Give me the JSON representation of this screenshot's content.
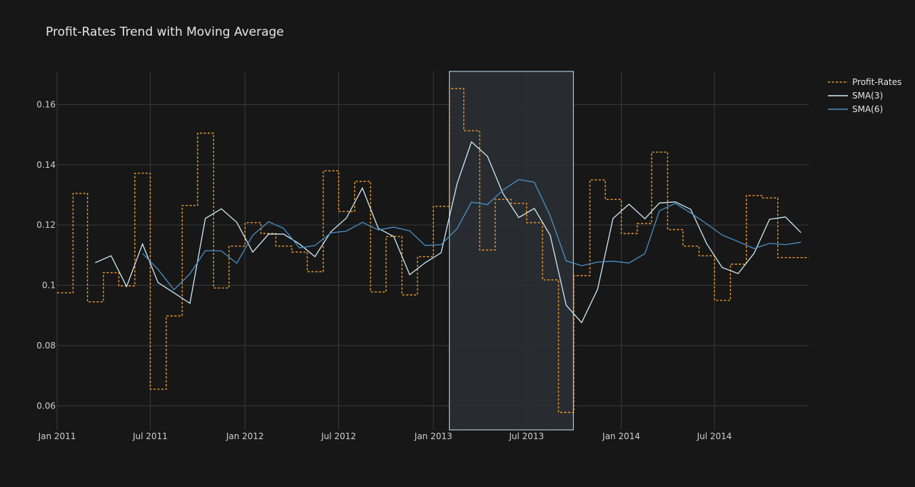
{
  "chart_data": {
    "type": "line",
    "title": "Profit-Rates Trend with Moving Average",
    "xlabel": "",
    "ylabel": "",
    "x_tick_labels": [
      "Jan 2011",
      "Jul 2011",
      "Jan 2012",
      "Jul 2012",
      "Jan 2013",
      "Jul 2013",
      "Jan 2014",
      "Jul 2014"
    ],
    "y_tick_labels": [
      "0.06",
      "0.08",
      "0.1",
      "0.12",
      "0.14",
      "0.16"
    ],
    "y_ticks": [
      0.06,
      0.08,
      0.1,
      0.12,
      0.14,
      0.16
    ],
    "ylim": [
      0.052,
      0.171
    ],
    "xlim": [
      "2011-01-01",
      "2014-12-31"
    ],
    "grid": true,
    "legend_position": "top-right",
    "highlight_region": {
      "start": "2013-02-01",
      "end": "2013-09-30"
    },
    "colors": {
      "background": "#171717",
      "grid": "#3a3a3a",
      "profit_rates": "#f39c2b",
      "sma3": "#cde9f4",
      "sma6": "#4a90c9",
      "highlight_fill": "#2a2f33",
      "highlight_border": "#a9c4d6"
    },
    "x": [
      "2011-01",
      "2011-02",
      "2011-03",
      "2011-04",
      "2011-05",
      "2011-06",
      "2011-07",
      "2011-08",
      "2011-09",
      "2011-10",
      "2011-11",
      "2011-12",
      "2012-01",
      "2012-02",
      "2012-03",
      "2012-04",
      "2012-05",
      "2012-06",
      "2012-07",
      "2012-08",
      "2012-09",
      "2012-10",
      "2012-11",
      "2012-12",
      "2013-01",
      "2013-02",
      "2013-03",
      "2013-04",
      "2013-05",
      "2013-06",
      "2013-07",
      "2013-08",
      "2013-09",
      "2013-10",
      "2013-11",
      "2013-12",
      "2014-01",
      "2014-02",
      "2014-03",
      "2014-04",
      "2014-05",
      "2014-06",
      "2014-07",
      "2014-08",
      "2014-09",
      "2014-10",
      "2014-11",
      "2014-12"
    ],
    "series": [
      {
        "name": "Profit-Rates",
        "line": "dotted-step",
        "values": [
          0.0975,
          0.1305,
          0.0945,
          0.1042,
          0.0998,
          0.1372,
          0.0655,
          0.0898,
          0.1265,
          0.1505,
          0.0991,
          0.113,
          0.1208,
          0.1172,
          0.113,
          0.111,
          0.1045,
          0.138,
          0.1245,
          0.1345,
          0.0978,
          0.1162,
          0.0968,
          0.1095,
          0.1262,
          0.1653,
          0.1513,
          0.1117,
          0.1285,
          0.1272,
          0.1208,
          0.1018,
          0.0578,
          0.1032,
          0.135,
          0.1285,
          0.1172,
          0.1205,
          0.1442,
          0.1185,
          0.113,
          0.1098,
          0.095,
          0.107,
          0.1298,
          0.129,
          0.1092,
          0.1092
        ]
      },
      {
        "name": "SMA(3)",
        "values": [
          null,
          null,
          0.1075,
          0.1098,
          0.0996,
          0.1137,
          0.1009,
          0.0975,
          0.094,
          0.1222,
          0.1254,
          0.1209,
          0.111,
          0.117,
          0.117,
          0.1137,
          0.1095,
          0.1178,
          0.1223,
          0.1323,
          0.1189,
          0.1162,
          0.1035,
          0.1075,
          0.1108,
          0.1337,
          0.1476,
          0.1428,
          0.1305,
          0.1225,
          0.1255,
          0.1166,
          0.0934,
          0.0876,
          0.0987,
          0.1222,
          0.1269,
          0.1221,
          0.1273,
          0.1277,
          0.1252,
          0.1138,
          0.1059,
          0.1039,
          0.1106,
          0.1219,
          0.1227,
          0.1175
        ]
      },
      {
        "name": "SMA(6)",
        "values": [
          null,
          null,
          null,
          null,
          null,
          0.1106,
          0.1053,
          0.0985,
          0.1038,
          0.1115,
          0.1114,
          0.1073,
          0.1166,
          0.1211,
          0.1189,
          0.1124,
          0.1132,
          0.1174,
          0.118,
          0.1209,
          0.1184,
          0.1193,
          0.1181,
          0.1132,
          0.1135,
          0.1188,
          0.1276,
          0.1268,
          0.1316,
          0.1351,
          0.1342,
          0.1231,
          0.1081,
          0.1065,
          0.1077,
          0.108,
          0.1074,
          0.1105,
          0.1247,
          0.1272,
          0.124,
          0.1204,
          0.1167,
          0.1145,
          0.1122,
          0.1139,
          0.1135,
          0.1143
        ]
      }
    ]
  }
}
